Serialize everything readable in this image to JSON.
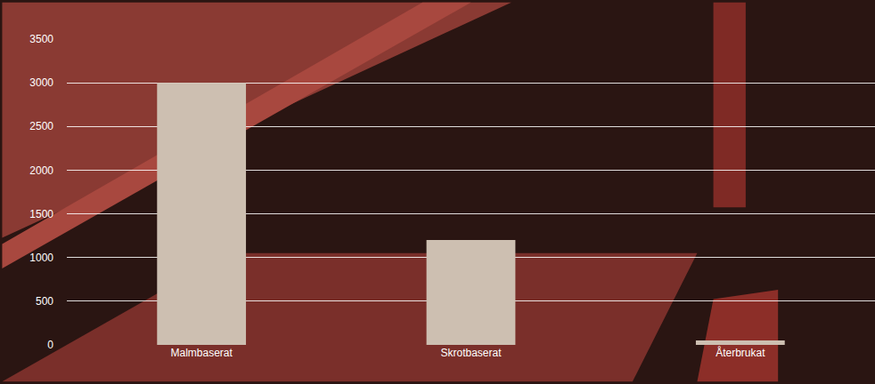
{
  "chart_data": {
    "type": "bar",
    "categories": [
      "Malmbaserat",
      "Skrotbaserat",
      "Återbrukat"
    ],
    "values": [
      3000,
      1200,
      50
    ],
    "color": "#cdbfb1",
    "ylim": [
      0,
      3500
    ],
    "yticks": [
      0,
      500,
      1000,
      1500,
      2000,
      2500,
      3000,
      3500
    ],
    "grid": true
  }
}
